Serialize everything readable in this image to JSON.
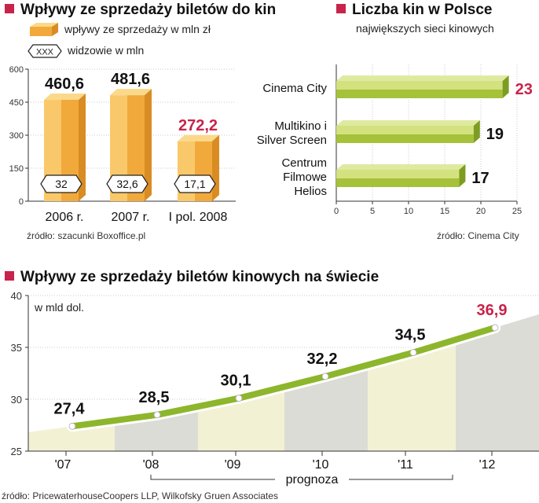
{
  "chart_data": [
    {
      "type": "bar",
      "title": "Wpływy ze sprzedaży biletów do kin",
      "legend": {
        "revenue": "wpływy ze sprzedaży w mln zł",
        "viewers_marker": "XXX",
        "viewers": "widzowie w mln"
      },
      "categories": [
        "2006 r.",
        "2007 r.",
        "I pol. 2008"
      ],
      "series": [
        {
          "name": "wpływy ze sprzedaży w mln zł",
          "values": [
            460.6,
            481.6,
            272.2
          ],
          "labels": [
            "460,6",
            "481,6",
            "272,2"
          ]
        },
        {
          "name": "widzowie w mln",
          "values": [
            32,
            32.6,
            17.1
          ],
          "labels": [
            "32",
            "32,6",
            "17,1"
          ]
        }
      ],
      "highlight_index": 2,
      "ylim": [
        0,
        600
      ],
      "yticks": [
        "0",
        "150",
        "300",
        "450",
        "600"
      ],
      "source": "źródło: szacunki Boxoffice.pl",
      "colors": {
        "bar": "#f2a93b",
        "bar_light": "#f9c86a",
        "bar_top": "#fbd98a",
        "highlight": "#c8234a"
      }
    },
    {
      "type": "bar",
      "orientation": "horizontal",
      "title": "Liczba kin w Polsce",
      "subtitle": "największych sieci kinowych",
      "categories": [
        [
          "Cinema City"
        ],
        [
          "Multikino i",
          "Silver Screen"
        ],
        [
          "Centrum",
          "Filmowe",
          "Helios"
        ]
      ],
      "values": [
        23,
        19,
        17
      ],
      "labels": [
        "23",
        "19",
        "17"
      ],
      "highlight_index": 0,
      "xlim": [
        0,
        25
      ],
      "xticks": [
        "0",
        "5",
        "10",
        "15",
        "20",
        "25"
      ],
      "source": "źródło: Cinema City",
      "colors": {
        "bar": "#a6c13a",
        "bar_light": "#d3e27e",
        "highlight": "#c8234a"
      }
    },
    {
      "type": "line",
      "title": "Wpływy ze sprzedaży biletów kinowych na świecie",
      "unit_label": "w mld dol.",
      "x": [
        "'07",
        "'08",
        "'09",
        "'10",
        "'11",
        "'12"
      ],
      "values": [
        27.4,
        28.5,
        30.1,
        32.2,
        34.5,
        36.9
      ],
      "labels": [
        "27,4",
        "28,5",
        "30,1",
        "32,2",
        "34,5",
        "36,9"
      ],
      "highlight_index": 5,
      "ylim": [
        25,
        40
      ],
      "yticks": [
        "25",
        "30",
        "35",
        "40"
      ],
      "forecast_label": "prognoza",
      "source": "źródło: PricewaterhouseCoopers LLP, Wilkofsky Gruen Associates",
      "colors": {
        "line": "#8db62c",
        "band_light": "#f3f1d4",
        "band_dark": "#dcdcd6",
        "highlight": "#c8234a"
      }
    }
  ]
}
